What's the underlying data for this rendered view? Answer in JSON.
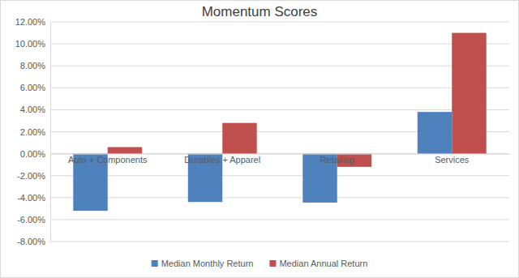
{
  "chart_data": {
    "type": "bar",
    "title": "Momentum Scores",
    "categories": [
      "Auto + Components",
      "Durables + Apparel",
      "Retailing",
      "Services"
    ],
    "series": [
      {
        "name": "Median Monthly Return",
        "color": "#4f81bd",
        "values": [
          -5.2,
          -4.4,
          -4.45,
          3.8
        ]
      },
      {
        "name": "Median Annual Return",
        "color": "#c0504d",
        "values": [
          0.6,
          2.8,
          -1.2,
          11.0
        ]
      }
    ],
    "ylim": [
      -8,
      12
    ],
    "yticks": [
      {
        "value": -8,
        "label": "-8.00%"
      },
      {
        "value": -6,
        "label": "-6.00%"
      },
      {
        "value": -4,
        "label": "-4.00%"
      },
      {
        "value": -2,
        "label": "-2.00%"
      },
      {
        "value": 0,
        "label": "0.00%"
      },
      {
        "value": 2,
        "label": "2.00%"
      },
      {
        "value": 4,
        "label": "4.00%"
      },
      {
        "value": 6,
        "label": "6.00%"
      },
      {
        "value": 8,
        "label": "8.00%"
      },
      {
        "value": 10,
        "label": "10.00%"
      },
      {
        "value": 12,
        "label": "12.00%"
      }
    ],
    "grid": true,
    "legend": "bottom"
  }
}
